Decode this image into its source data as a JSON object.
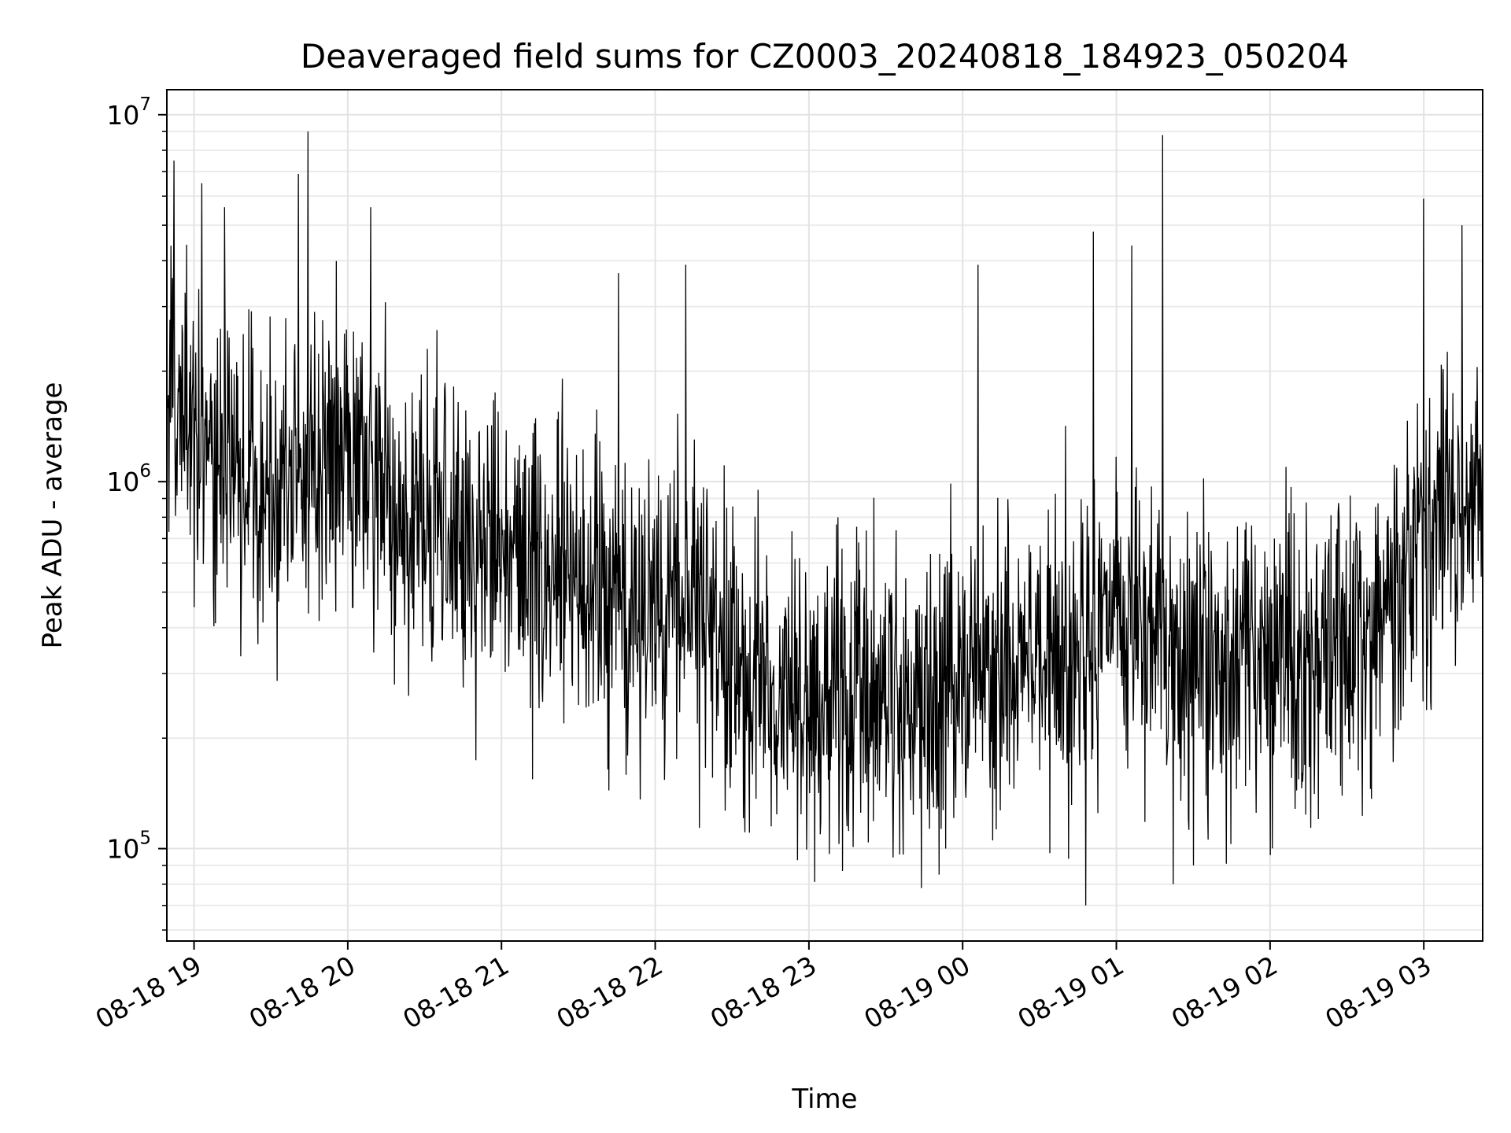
{
  "chart_data": {
    "type": "line",
    "title": "Deaveraged field sums for CZ0003_20240818_184923_050204",
    "xlabel": "Time",
    "ylabel": "Peak ADU - average",
    "x_range": [
      "2024-08-18 18:49:23",
      "2024-08-19 03:23:00"
    ],
    "xlim_hours": [
      18.823,
      27.383
    ],
    "ylim": [
      56000,
      11700000
    ],
    "y_scale": "log",
    "grid": true,
    "line_color": "#000000",
    "x_ticks": [
      {
        "hour": 19,
        "label": "08-18 19"
      },
      {
        "hour": 20,
        "label": "08-18 20"
      },
      {
        "hour": 21,
        "label": "08-18 21"
      },
      {
        "hour": 22,
        "label": "08-18 22"
      },
      {
        "hour": 23,
        "label": "08-18 23"
      },
      {
        "hour": 24,
        "label": "08-19 00"
      },
      {
        "hour": 25,
        "label": "08-19 01"
      },
      {
        "hour": 26,
        "label": "08-19 02"
      },
      {
        "hour": 27,
        "label": "08-19 03"
      }
    ],
    "y_ticks": [
      {
        "value": 100000,
        "base": "10",
        "exponent": "5"
      },
      {
        "value": 1000000,
        "base": "10",
        "exponent": "6"
      },
      {
        "value": 10000000,
        "base": "10",
        "exponent": "7"
      }
    ],
    "trend_points": [
      {
        "hour": 18.83,
        "value": 2000000
      },
      {
        "hour": 19.0,
        "value": 1300000
      },
      {
        "hour": 19.5,
        "value": 1000000
      },
      {
        "hour": 20.0,
        "value": 1200000
      },
      {
        "hour": 20.3,
        "value": 800000
      },
      {
        "hour": 21.0,
        "value": 650000
      },
      {
        "hour": 21.5,
        "value": 550000
      },
      {
        "hour": 21.9,
        "value": 400000
      },
      {
        "hour": 22.2,
        "value": 500000
      },
      {
        "hour": 22.5,
        "value": 320000
      },
      {
        "hour": 23.0,
        "value": 250000
      },
      {
        "hour": 23.5,
        "value": 260000
      },
      {
        "hour": 24.0,
        "value": 280000
      },
      {
        "hour": 24.6,
        "value": 320000
      },
      {
        "hour": 25.0,
        "value": 400000
      },
      {
        "hour": 25.3,
        "value": 350000
      },
      {
        "hour": 25.6,
        "value": 330000
      },
      {
        "hour": 26.0,
        "value": 330000
      },
      {
        "hour": 26.4,
        "value": 350000
      },
      {
        "hour": 26.8,
        "value": 450000
      },
      {
        "hour": 27.0,
        "value": 700000
      },
      {
        "hour": 27.38,
        "value": 1000000
      }
    ],
    "spikes": [
      {
        "hour": 18.87,
        "value": 7500000
      },
      {
        "hour": 19.05,
        "value": 6500000
      },
      {
        "hour": 19.2,
        "value": 5600000
      },
      {
        "hour": 19.68,
        "value": 6900000
      },
      {
        "hour": 19.74,
        "value": 9000000
      },
      {
        "hour": 20.15,
        "value": 5600000
      },
      {
        "hour": 21.76,
        "value": 3700000
      },
      {
        "hour": 22.2,
        "value": 3900000
      },
      {
        "hour": 24.1,
        "value": 3900000
      },
      {
        "hour": 24.8,
        "value": 70000
      },
      {
        "hour": 24.85,
        "value": 4800000
      },
      {
        "hour": 25.1,
        "value": 4400000
      },
      {
        "hour": 25.3,
        "value": 8800000
      },
      {
        "hour": 25.37,
        "value": 80000
      },
      {
        "hour": 25.5,
        "value": 90000
      },
      {
        "hour": 26.0,
        "value": 96000
      },
      {
        "hour": 27.0,
        "value": 5900000
      },
      {
        "hour": 27.25,
        "value": 5000000
      }
    ]
  }
}
